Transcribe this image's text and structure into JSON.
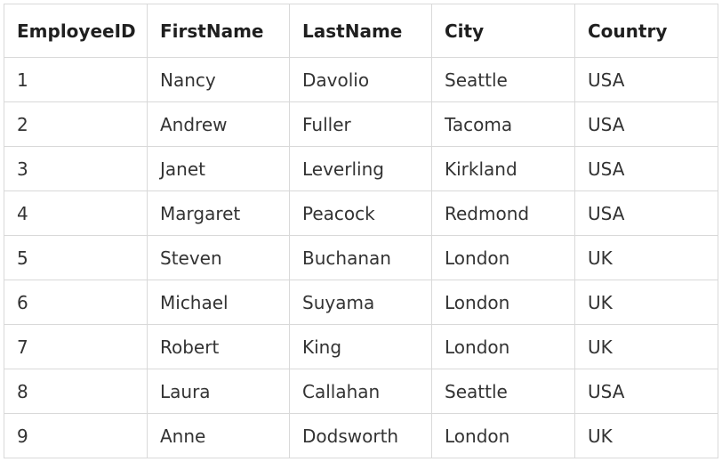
{
  "table": {
    "columns": [
      "EmployeeID",
      "FirstName",
      "LastName",
      "City",
      "Country"
    ],
    "rows": [
      [
        "1",
        "Nancy",
        "Davolio",
        "Seattle",
        "USA"
      ],
      [
        "2",
        "Andrew",
        "Fuller",
        "Tacoma",
        "USA"
      ],
      [
        "3",
        "Janet",
        "Leverling",
        "Kirkland",
        "USA"
      ],
      [
        "4",
        "Margaret",
        "Peacock",
        "Redmond",
        "USA"
      ],
      [
        "5",
        "Steven",
        "Buchanan",
        "London",
        "UK"
      ],
      [
        "6",
        "Michael",
        "Suyama",
        "London",
        "UK"
      ],
      [
        "7",
        "Robert",
        "King",
        "London",
        "UK"
      ],
      [
        "8",
        "Laura",
        "Callahan",
        "Seattle",
        "USA"
      ],
      [
        "9",
        "Anne",
        "Dodsworth",
        "London",
        "UK"
      ]
    ]
  },
  "colors": {
    "border": "#d9d9d9",
    "header_text": "#1f1f1f",
    "cell_text": "#333333",
    "background": "#ffffff"
  }
}
